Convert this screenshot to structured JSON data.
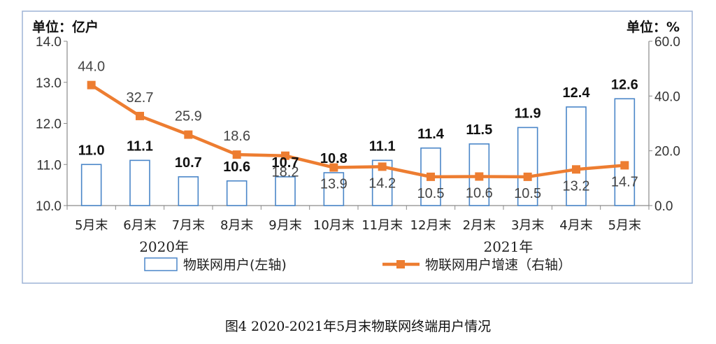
{
  "chart_data": {
    "type": "bar+line",
    "categories": [
      "5月末",
      "6月末",
      "7月末",
      "8月末",
      "9月末",
      "10月末",
      "11月末",
      "12月末",
      "2月末",
      "3月末",
      "4月末",
      "5月末"
    ],
    "year_labels": [
      "2020年",
      "2021年"
    ],
    "left_unit": "单位：亿户",
    "right_unit": "单位：%",
    "series": [
      {
        "name": "物联网用户(左轴)",
        "kind": "bar",
        "axis": "left",
        "values": [
          11.0,
          11.1,
          10.7,
          10.6,
          10.7,
          10.8,
          11.1,
          11.4,
          11.5,
          11.9,
          12.4,
          12.6
        ],
        "labels": [
          "11.0",
          "11.1",
          "10.7",
          "10.6",
          "10.7",
          "10.8",
          "11.1",
          "11.4",
          "11.5",
          "11.9",
          "12.4",
          "12.6"
        ]
      },
      {
        "name": "物联网用户增速（右轴）",
        "kind": "line",
        "axis": "right",
        "values": [
          44.0,
          32.7,
          25.9,
          18.6,
          18.2,
          13.9,
          14.2,
          10.5,
          10.6,
          10.5,
          13.2,
          14.7
        ],
        "labels": [
          "44.0",
          "32.7",
          "25.9",
          "18.6",
          "18.2",
          "13.9",
          "14.2",
          "10.5",
          "10.6",
          "10.5",
          "13.2",
          "14.7"
        ]
      }
    ],
    "ylim_left": [
      10.0,
      14.0
    ],
    "yticks_left": [
      "10.0",
      "11.0",
      "12.0",
      "13.0",
      "14.0"
    ],
    "ylim_right": [
      0,
      60
    ],
    "yticks_right": [
      "0.0",
      "20.0",
      "40.0",
      "60.0"
    ],
    "grid": false,
    "legend_position": "bottom",
    "colors": {
      "bar_stroke": "#4a86c8",
      "bar_fill": "#ffffff",
      "line": "#ed7d31",
      "axis": "#8a8a8a",
      "frame": "#9db3d6"
    }
  },
  "caption": "图4 2020-2021年5月末物联网终端用户情况"
}
